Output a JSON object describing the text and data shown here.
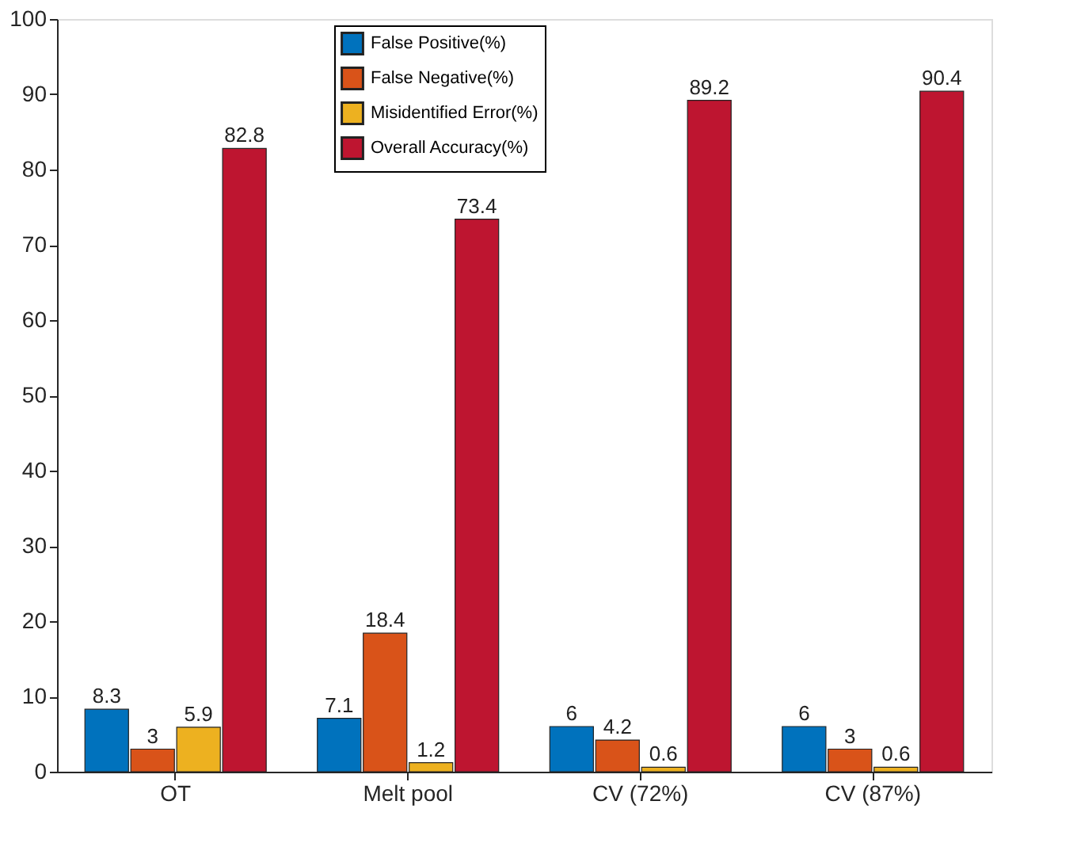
{
  "chart_data": {
    "type": "bar",
    "categories": [
      "OT",
      "Melt pool",
      "CV (72%)",
      "CV (87%)"
    ],
    "series": [
      {
        "name": "False Positive(%)",
        "color": "#0072bd",
        "values": [
          8.3,
          7.1,
          6,
          6
        ]
      },
      {
        "name": "False Negative(%)",
        "color": "#d95319",
        "values": [
          3,
          18.4,
          4.2,
          3
        ]
      },
      {
        "name": "Misidentified Error(%)",
        "color": "#edb120",
        "values": [
          5.9,
          1.2,
          0.6,
          0.6
        ]
      },
      {
        "name": "Overall Accuracy(%)",
        "color": "#be1530",
        "values": [
          82.8,
          73.4,
          89.2,
          90.4
        ]
      }
    ],
    "ylim": [
      0,
      100
    ],
    "yticks": [
      0,
      10,
      20,
      30,
      40,
      50,
      60,
      70,
      80,
      90,
      100
    ],
    "data_labels": true,
    "legend": "top",
    "grid": false
  }
}
